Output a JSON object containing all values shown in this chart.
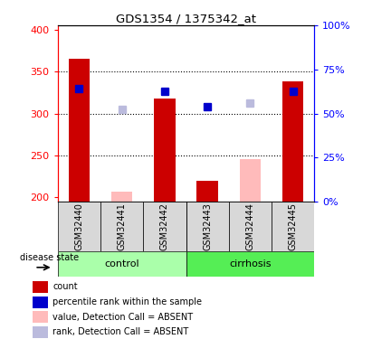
{
  "title": "GDS1354 / 1375342_at",
  "samples": [
    "GSM32440",
    "GSM32441",
    "GSM32442",
    "GSM32443",
    "GSM32444",
    "GSM32445"
  ],
  "count_values": [
    365,
    null,
    318,
    220,
    null,
    338
  ],
  "count_absent": [
    null,
    207,
    null,
    null,
    246,
    null
  ],
  "rank_values": [
    330,
    null,
    327,
    308,
    null,
    327
  ],
  "rank_absent": [
    null,
    305,
    null,
    null,
    313,
    null
  ],
  "ylim_left": [
    195,
    405
  ],
  "ylim_right": [
    0,
    100
  ],
  "yticks_left": [
    200,
    250,
    300,
    350,
    400
  ],
  "yticks_right": [
    0,
    25,
    50,
    75,
    100
  ],
  "grid_lines": [
    250,
    300,
    350
  ],
  "color_count": "#cc0000",
  "color_rank": "#0000cc",
  "color_count_absent": "#ffbbbb",
  "color_rank_absent": "#bbbbdd",
  "color_control_bg": "#aaffaa",
  "color_cirrhosis_bg": "#55ee55",
  "legend_items": [
    {
      "color": "#cc0000",
      "label": "count"
    },
    {
      "color": "#0000cc",
      "label": "percentile rank within the sample"
    },
    {
      "color": "#ffbbbb",
      "label": "value, Detection Call = ABSENT"
    },
    {
      "color": "#bbbbdd",
      "label": "rank, Detection Call = ABSENT"
    }
  ]
}
